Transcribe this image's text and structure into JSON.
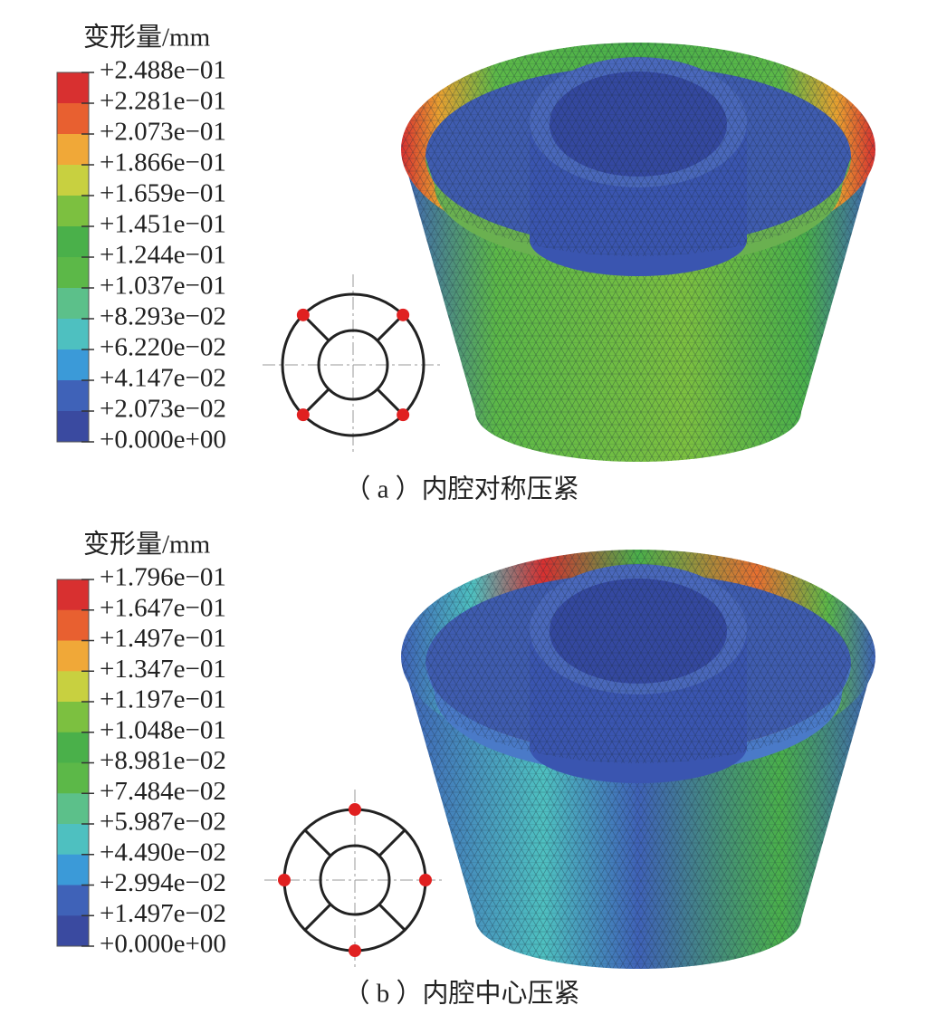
{
  "panels": [
    {
      "legend_title": "变形量/mm",
      "legend_labels": [
        "+2.488e−01",
        "+2.281e−01",
        "+2.073e−01",
        "+1.866e−01",
        "+1.659e−01",
        "+1.451e−01",
        "+1.244e−01",
        "+1.037e−01",
        "+8.293e−02",
        "+6.220e−02",
        "+4.147e−02",
        "+2.073e−02",
        "+0.000e+00"
      ],
      "caption": "（ a ）内腔对称压紧"
    },
    {
      "legend_title": "变形量/mm",
      "legend_labels": [
        "+1.796e−01",
        "+1.647e−01",
        "+1.497e−01",
        "+1.347e−01",
        "+1.197e−01",
        "+1.048e−01",
        "+8.981e−02",
        "+7.484e−02",
        "+5.987e−02",
        "+4.490e−02",
        "+2.994e−02",
        "+1.497e−02",
        "+0.000e+00"
      ],
      "caption": "（ b ）内腔中心压紧"
    }
  ]
}
